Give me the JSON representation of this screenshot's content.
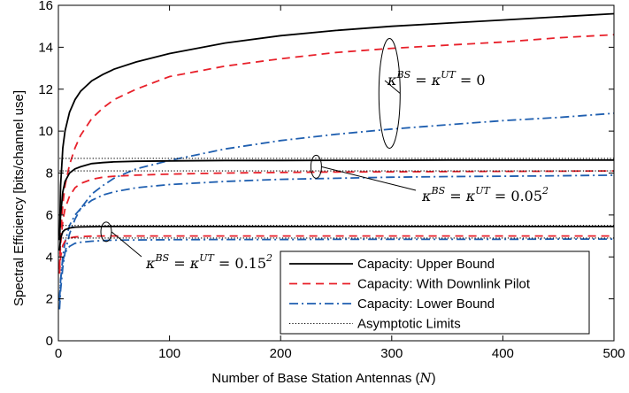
{
  "chart_data": {
    "type": "line",
    "xlabel": "Number of Base Station Antennas",
    "xlabel_symbol": "N",
    "ylabel": "Spectral Efficiency [bits/channel use]",
    "xlim": [
      0,
      500
    ],
    "ylim": [
      0,
      16
    ],
    "xticks": [
      0,
      100,
      200,
      300,
      400,
      500
    ],
    "yticks": [
      0,
      2,
      4,
      6,
      8,
      10,
      12,
      14,
      16
    ],
    "grid": false,
    "legend_position": "bottom-right",
    "legend": [
      {
        "label": "Capacity: Upper Bound",
        "style": "solid",
        "color": "#000000"
      },
      {
        "label": "Capacity: With Downlink Pilot",
        "style": "dashed",
        "color": "#e8202a"
      },
      {
        "label": "Capacity: Lower Bound",
        "style": "dashdot",
        "color": "#1f5fb0"
      },
      {
        "label": "Asymptotic Limits",
        "style": "dotted",
        "color": "#000000"
      }
    ],
    "annotations": [
      {
        "kappa_bs": "BS",
        "kappa_ut": "UT",
        "value": "0",
        "exponent": ""
      },
      {
        "kappa_bs": "BS",
        "kappa_ut": "UT",
        "value": "0.05",
        "exponent": "2"
      },
      {
        "kappa_bs": "BS",
        "kappa_ut": "UT",
        "value": "0.15",
        "exponent": "2"
      }
    ],
    "x": [
      1,
      2,
      4,
      6,
      10,
      15,
      20,
      30,
      40,
      50,
      70,
      100,
      150,
      200,
      250,
      300,
      350,
      400,
      450,
      500
    ],
    "series": [
      {
        "group": 0,
        "kind": "upper",
        "values": [
          5.0,
          7.4,
          9.2,
          10.0,
          10.9,
          11.5,
          11.9,
          12.4,
          12.7,
          12.95,
          13.3,
          13.7,
          14.2,
          14.55,
          14.8,
          15.0,
          15.15,
          15.3,
          15.45,
          15.6
        ]
      },
      {
        "group": 0,
        "kind": "pilot",
        "values": [
          3.5,
          5.0,
          6.5,
          7.4,
          8.4,
          9.2,
          9.8,
          10.6,
          11.1,
          11.5,
          12.0,
          12.6,
          13.1,
          13.45,
          13.75,
          13.95,
          14.1,
          14.25,
          14.45,
          14.6
        ]
      },
      {
        "group": 0,
        "kind": "lower",
        "values": [
          1.5,
          2.4,
          3.5,
          4.2,
          5.1,
          5.8,
          6.3,
          7.0,
          7.4,
          7.75,
          8.2,
          8.6,
          9.15,
          9.55,
          9.85,
          10.1,
          10.3,
          10.5,
          10.65,
          10.85
        ]
      },
      {
        "group": 0,
        "kind": "asymptote",
        "values": [
          8.7,
          8.7,
          8.7,
          8.7,
          8.7,
          8.7,
          8.7,
          8.7,
          8.7,
          8.7,
          8.7,
          8.7,
          8.7,
          8.7,
          8.7,
          8.7,
          8.7,
          8.7,
          8.7,
          8.7
        ]
      },
      {
        "group": 1,
        "kind": "upper",
        "values": [
          4.8,
          6.0,
          7.1,
          7.6,
          8.0,
          8.2,
          8.3,
          8.45,
          8.5,
          8.53,
          8.56,
          8.58,
          8.6,
          8.6,
          8.61,
          8.61,
          8.62,
          8.62,
          8.62,
          8.62
        ]
      },
      {
        "group": 1,
        "kind": "pilot",
        "values": [
          3.4,
          4.6,
          5.7,
          6.3,
          6.9,
          7.3,
          7.5,
          7.7,
          7.8,
          7.85,
          7.9,
          7.95,
          8.0,
          8.03,
          8.05,
          8.06,
          8.07,
          8.08,
          8.09,
          8.1
        ]
      },
      {
        "group": 1,
        "kind": "lower",
        "values": [
          1.9,
          2.9,
          4.0,
          4.7,
          5.5,
          6.0,
          6.3,
          6.7,
          6.95,
          7.1,
          7.3,
          7.45,
          7.6,
          7.7,
          7.75,
          7.8,
          7.83,
          7.85,
          7.87,
          7.9
        ]
      },
      {
        "group": 1,
        "kind": "asymptote",
        "values": [
          8.1,
          8.1,
          8.1,
          8.1,
          8.1,
          8.1,
          8.1,
          8.1,
          8.1,
          8.1,
          8.1,
          8.1,
          8.1,
          8.1,
          8.1,
          8.1,
          8.1,
          8.1,
          8.1,
          8.1
        ]
      },
      {
        "group": 2,
        "kind": "upper",
        "values": [
          4.3,
          4.9,
          5.2,
          5.3,
          5.38,
          5.42,
          5.43,
          5.44,
          5.45,
          5.45,
          5.45,
          5.45,
          5.45,
          5.45,
          5.45,
          5.45,
          5.45,
          5.45,
          5.45,
          5.45
        ]
      },
      {
        "group": 2,
        "kind": "pilot",
        "values": [
          3.2,
          4.0,
          4.55,
          4.75,
          4.9,
          4.95,
          4.97,
          4.99,
          5.0,
          5.0,
          5.0,
          5.0,
          5.0,
          5.0,
          5.0,
          5.0,
          5.0,
          5.0,
          5.0,
          5.0
        ]
      },
      {
        "group": 2,
        "kind": "lower",
        "values": [
          2.0,
          2.9,
          3.8,
          4.2,
          4.5,
          4.65,
          4.7,
          4.75,
          4.78,
          4.8,
          4.81,
          4.82,
          4.83,
          4.83,
          4.84,
          4.84,
          4.84,
          4.84,
          4.85,
          4.85
        ]
      },
      {
        "group": 2,
        "kind": "asymptote",
        "values": [
          4.9,
          4.9,
          4.9,
          4.9,
          4.9,
          4.9,
          4.9,
          4.9,
          4.9,
          4.9,
          4.9,
          4.9,
          4.9,
          4.9,
          4.9,
          4.9,
          4.9,
          4.9,
          4.9,
          4.9
        ]
      },
      {
        "group": 2,
        "kind": "asymptote2",
        "values": [
          5.5,
          5.5,
          5.5,
          5.5,
          5.5,
          5.5,
          5.5,
          5.5,
          5.5,
          5.5,
          5.5,
          5.5,
          5.5,
          5.5,
          5.5,
          5.5,
          5.5,
          5.5,
          5.5,
          5.5
        ]
      }
    ]
  }
}
